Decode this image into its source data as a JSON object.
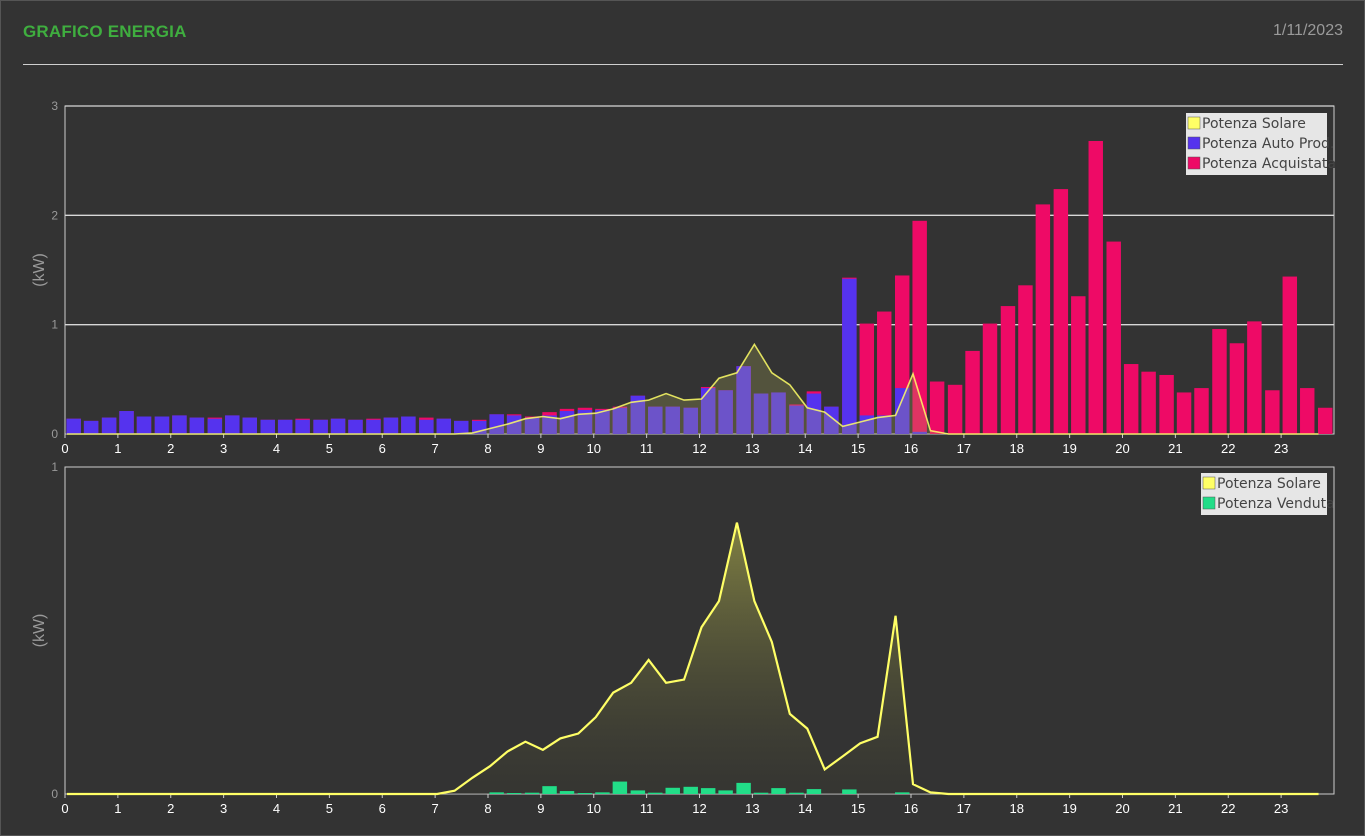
{
  "header": {
    "title": "GRAFICO ENERGIA",
    "date": "1/11/2023"
  },
  "colors": {
    "solar": "#ffff66",
    "auto": "#5533ee",
    "bought": "#ee0a66",
    "sold": "#22dd88",
    "title": "#3fae3f"
  },
  "chart_data": [
    {
      "type": "bar",
      "ylabel": "(kW)",
      "ylim": [
        0,
        3
      ],
      "yticks": [
        0,
        1,
        2,
        3
      ],
      "xlim": [
        0,
        24
      ],
      "xticks": [
        "0",
        "1",
        "2",
        "3",
        "4",
        "5",
        "6",
        "7",
        "8",
        "9",
        "10",
        "11",
        "12",
        "13",
        "14",
        "15",
        "16",
        "17",
        "18",
        "19",
        "20",
        "21",
        "22",
        "23"
      ],
      "grid": true,
      "legend_position": "top-right",
      "legend": [
        "Potenza Solare",
        "Potenza Auto Prod.",
        "Potenza Acquistata"
      ],
      "x": [
        0.0,
        0.33,
        0.67,
        1.0,
        1.33,
        1.67,
        2.0,
        2.33,
        2.67,
        3.0,
        3.33,
        3.67,
        4.0,
        4.33,
        4.67,
        5.0,
        5.33,
        5.67,
        6.0,
        6.33,
        6.67,
        7.0,
        7.33,
        7.67,
        8.0,
        8.33,
        8.67,
        9.0,
        9.33,
        9.67,
        10.0,
        10.33,
        10.67,
        11.0,
        11.33,
        11.67,
        12.0,
        12.33,
        12.67,
        13.0,
        13.33,
        13.67,
        14.0,
        14.33,
        14.67,
        15.0,
        15.33,
        15.67,
        16.0,
        16.33,
        16.67,
        17.0,
        17.33,
        17.67,
        18.0,
        18.33,
        18.67,
        19.0,
        19.33,
        19.67,
        20.0,
        20.33,
        20.67,
        21.0,
        21.33,
        21.67,
        22.0,
        22.33,
        22.67,
        23.0,
        23.33,
        23.67
      ],
      "series": [
        {
          "name": "Potenza Auto Prod.",
          "kind": "bar",
          "values": [
            0.14,
            0.12,
            0.15,
            0.21,
            0.16,
            0.16,
            0.17,
            0.15,
            0.14,
            0.17,
            0.15,
            0.13,
            0.13,
            0.13,
            0.13,
            0.14,
            0.13,
            0.13,
            0.15,
            0.16,
            0.13,
            0.14,
            0.12,
            0.12,
            0.18,
            0.17,
            0.15,
            0.17,
            0.21,
            0.22,
            0.22,
            0.24,
            0.35,
            0.25,
            0.25,
            0.24,
            0.42,
            0.4,
            0.62,
            0.37,
            0.38,
            0.26,
            0.37,
            0.25,
            1.42,
            0.17,
            0.17,
            0.42,
            0.02,
            0,
            0,
            0,
            0,
            0,
            0,
            0,
            0,
            0,
            0,
            0,
            0,
            0,
            0,
            0,
            0,
            0,
            0,
            0,
            0,
            0,
            0,
            0
          ]
        },
        {
          "name": "Potenza Acquistata",
          "kind": "bar",
          "values": [
            0.14,
            0.12,
            0.15,
            0.21,
            0.16,
            0.16,
            0.17,
            0.15,
            0.15,
            0.17,
            0.15,
            0.13,
            0.13,
            0.14,
            0.13,
            0.14,
            0.13,
            0.14,
            0.15,
            0.16,
            0.15,
            0.14,
            0.12,
            0.13,
            0.18,
            0.18,
            0.16,
            0.2,
            0.23,
            0.24,
            0.23,
            0.25,
            0.35,
            0.25,
            0.25,
            0.24,
            0.43,
            0.4,
            0.62,
            0.37,
            0.38,
            0.27,
            0.39,
            0.25,
            1.43,
            1.01,
            1.12,
            1.45,
            1.95,
            0.48,
            0.45,
            0.76,
            1.01,
            1.17,
            1.36,
            2.1,
            2.24,
            1.26,
            2.68,
            1.76,
            0.64,
            0.57,
            0.54,
            0.38,
            0.42,
            0.96,
            0.83,
            1.03,
            0.4,
            1.44,
            0.42,
            0.24
          ]
        },
        {
          "name": "Potenza Solare",
          "kind": "line",
          "values": [
            0,
            0,
            0,
            0,
            0,
            0,
            0,
            0,
            0,
            0,
            0,
            0,
            0,
            0,
            0,
            0,
            0,
            0,
            0,
            0,
            0,
            0,
            0,
            0.01,
            0.05,
            0.09,
            0.14,
            0.16,
            0.14,
            0.18,
            0.19,
            0.23,
            0.29,
            0.31,
            0.37,
            0.31,
            0.32,
            0.51,
            0.56,
            0.82,
            0.56,
            0.45,
            0.24,
            0.2,
            0.07,
            0.11,
            0.15,
            0.17,
            0.55,
            0.03,
            0,
            0,
            0,
            0,
            0,
            0,
            0,
            0,
            0,
            0,
            0,
            0,
            0,
            0,
            0,
            0,
            0,
            0,
            0,
            0,
            0,
            0
          ]
        }
      ]
    },
    {
      "type": "bar",
      "ylabel": "(kW)",
      "ylim": [
        0,
        1
      ],
      "yticks": [
        0,
        1
      ],
      "xlim": [
        0,
        24
      ],
      "xticks": [
        "0",
        "1",
        "2",
        "3",
        "4",
        "5",
        "6",
        "7",
        "8",
        "9",
        "10",
        "11",
        "12",
        "13",
        "14",
        "15",
        "16",
        "17",
        "18",
        "19",
        "20",
        "21",
        "22",
        "23"
      ],
      "grid": false,
      "legend_position": "top-right",
      "legend": [
        "Potenza Solare",
        "Potenza Venduta"
      ],
      "x": [
        0.0,
        0.33,
        0.67,
        1.0,
        1.33,
        1.67,
        2.0,
        2.33,
        2.67,
        3.0,
        3.33,
        3.67,
        4.0,
        4.33,
        4.67,
        5.0,
        5.33,
        5.67,
        6.0,
        6.33,
        6.67,
        7.0,
        7.33,
        7.67,
        8.0,
        8.33,
        8.67,
        9.0,
        9.33,
        9.67,
        10.0,
        10.33,
        10.67,
        11.0,
        11.33,
        11.67,
        12.0,
        12.33,
        12.67,
        13.0,
        13.33,
        13.67,
        14.0,
        14.33,
        14.67,
        15.0,
        15.33,
        15.67,
        16.0,
        16.33,
        16.67,
        17.0,
        17.33,
        17.67,
        18.0,
        18.33,
        18.67,
        19.0,
        19.33,
        19.67,
        20.0,
        20.33,
        20.67,
        21.0,
        21.33,
        21.67,
        22.0,
        22.33,
        22.67,
        23.0,
        23.33,
        23.67
      ],
      "series": [
        {
          "name": "Potenza Venduta",
          "kind": "bar",
          "values": [
            0,
            0,
            0,
            0,
            0,
            0,
            0,
            0,
            0,
            0,
            0,
            0,
            0,
            0,
            0,
            0,
            0,
            0,
            0,
            0,
            0,
            0,
            0,
            0,
            0.005,
            0.003,
            0.004,
            0.024,
            0.009,
            0.003,
            0.005,
            0.038,
            0.011,
            0.004,
            0.019,
            0.022,
            0.018,
            0.011,
            0.034,
            0.004,
            0.018,
            0.004,
            0.015,
            0,
            0.014,
            0,
            0,
            0.005,
            0,
            0,
            0,
            0,
            0,
            0,
            0,
            0,
            0,
            0,
            0,
            0,
            0,
            0,
            0,
            0,
            0,
            0,
            0,
            0,
            0,
            0,
            0,
            0
          ]
        },
        {
          "name": "Potenza Solare",
          "kind": "line",
          "values": [
            0,
            0,
            0,
            0,
            0,
            0,
            0,
            0,
            0,
            0,
            0,
            0,
            0,
            0,
            0,
            0,
            0,
            0,
            0,
            0,
            0,
            0,
            0.01,
            0.05,
            0.085,
            0.13,
            0.16,
            0.135,
            0.17,
            0.185,
            0.235,
            0.31,
            0.34,
            0.41,
            0.34,
            0.35,
            0.51,
            0.59,
            0.83,
            0.59,
            0.465,
            0.245,
            0.2,
            0.075,
            0.115,
            0.155,
            0.175,
            0.545,
            0.03,
            0.005,
            0,
            0,
            0,
            0,
            0,
            0,
            0,
            0,
            0,
            0,
            0,
            0,
            0,
            0,
            0,
            0,
            0,
            0,
            0,
            0,
            0,
            0
          ]
        }
      ]
    }
  ]
}
